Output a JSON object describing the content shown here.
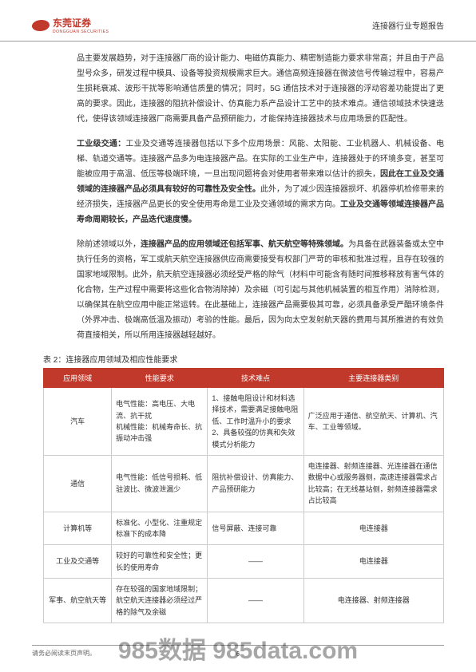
{
  "header": {
    "logo_text": "东莞证券",
    "logo_sub": "DONGGUAN SECURITIES",
    "right_text": "连接器行业专题报告"
  },
  "paragraphs": {
    "p1": "品主要发展趋势，对于连接器厂商的设计能力、电磁仿真能力、精密制造能力要求非常高；并且由于产品型号众多，研发过程中模具、设备等投资规模需求巨大。通信高频连接器在微波信号传输过程中，容易产生损耗衰减、波形干扰等影响通信质量的情况；同时，5G 通信技术对于连接器的浮动容差功能提出了更高的要求。因此，连接器的阻抗补偿设计、仿真能力系产品设计工艺中的技术难点。通信领域技术快速迭代，使得该领域连接器厂商需要具备产品预研能力，才能保持连接器技术与应用场景的匹配性。",
    "p2a": "工业级交通：",
    "p2b": "工业及交通等连接器包括以下多个应用场景：风能、太阳能、工业机器人、机械设备、电梯、轨道交通等。连接器产品多为电连接器产品。在实际的工业生产中，连接器处于的环境多变，甚至可能被应用于高温、低压等极端环境，一旦出现问题将会对使用者带来难以估计的损失，",
    "p2c": "因此在工业及交通领域的连接器产品必须具有较好的可靠性及安全性。",
    "p2d": "此外，为了减少因连接器损坏、机器停机检修带来的经济损失，连接器产品更长的安全使用寿命是工业及交通领域的需求方向。",
    "p2e": "工业及交通等领域连接器产品寿命周期较长，产品迭代速度慢。",
    "p3a": "除前述领域以外，",
    "p3b": "连接器产品的应用领域还包括军事、航天航空等特殊领域。",
    "p3c": "为具备在武器装备或太空中执行任务的资格，军工或航天航空连接器供应商需要接受有权部门严苛的审核和批准过程，且存在较强的国家地域限制。此外，航天航空连接器必须经受严格的除气（材料中可能含有随时间推移释放有害气体的化合物，生产过程中需要将这些化合物消除掉）及余磁（可引起与其他机械装置的相互作用）消除检测，以确保其在航空应用中能正常运转。在此基础上，连接器产品需要极其可靠，必须具备承受严酷环境条件（外界冲击、极端高低温及振动）考验的性能。最后，因为向太空发射航天器的费用与其所推进的有效负荷直接相关，所以所用连接器越轻越好。"
  },
  "table": {
    "caption": "表 2：连接器应用领域及相应性能要求",
    "headers": [
      "应用领域",
      "性能要求",
      "技术难点",
      "主要连接器类别"
    ],
    "rows": [
      {
        "c0": "汽车",
        "c1": "电气性能：高电压、大电流、抗干扰\n机械性能：机械寿命长、抗振动冲击强",
        "c2": "1、接触电阻设计和材料选择技术，需要满足接触电阻低、工作时温升小的要求\n2、具备较强的仿真和失效模式分析能力",
        "c3": "广泛应用于通信、航空航天、计算机、汽车、工业等领域。"
      },
      {
        "c0": "通信",
        "c1": "电气性能：低信号损耗、低驻波比、微波泄漏少",
        "c2": "阻抗补偿设计、仿真能力、产品预研能力",
        "c3": "电连接器、射频连接器、光连接器在通信数据中心或服务器侧，高速连接器需求占比较高；在无线基站侧，射频连接器需求占比较高"
      },
      {
        "c0": "计算机等",
        "c1": "标准化、小型化、注重规定标准下的成本降",
        "c2": "信号屏蔽、连接可靠",
        "c3": "电连接器"
      },
      {
        "c0": "工业及交通等",
        "c1": "较好的可靠性和安全性；更长的使用寿命",
        "c2": "——",
        "c3": "电连接器"
      },
      {
        "c0": "军事、航空航天等",
        "c1": "存在较强的国家地域限制；航空航天连接器必须经过严格的除气及余磁",
        "c2": "——",
        "c3": "电连接器、射频连接器"
      }
    ]
  },
  "footer": {
    "left": "请务必阅读末页声明。",
    "page": "6"
  },
  "watermark": "985数据 985data.com"
}
